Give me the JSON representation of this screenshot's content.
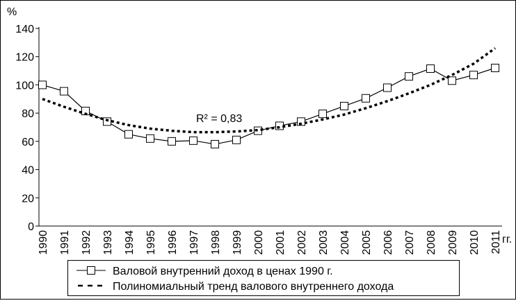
{
  "chart_data": {
    "type": "line",
    "ylabel": "%",
    "xlabel": "гг.",
    "annotation": "R² = 0,83",
    "categories": [
      "1990",
      "1991",
      "1992",
      "1993",
      "1994",
      "1995",
      "1996",
      "1997",
      "1998",
      "1999",
      "2000",
      "2001",
      "2002",
      "2003",
      "2004",
      "2005",
      "2006",
      "2007",
      "2008",
      "2009",
      "2010",
      "2011"
    ],
    "series": [
      {
        "name": "Валовой внутренний доход в ценах 1990 г.",
        "color": "#000000",
        "style": "solid",
        "marker": "square",
        "values": [
          100,
          95.5,
          81.5,
          74,
          65,
          62,
          60,
          60.5,
          58,
          61,
          67.5,
          71,
          74,
          79.5,
          85,
          90.5,
          98,
          106,
          111.5,
          103,
          107,
          112
        ]
      },
      {
        "name": "Полиномиальный тренд валового внутреннего дохода",
        "color": "#000000",
        "style": "dashed",
        "values": [
          90,
          84.5,
          79.5,
          75,
          71.5,
          69,
          67.5,
          66.5,
          66.5,
          67,
          68,
          70,
          72.5,
          75.5,
          79,
          83.5,
          88.5,
          94,
          100,
          107,
          115,
          126
        ]
      }
    ],
    "ylim": [
      0,
      140
    ],
    "yticks": [
      0,
      20,
      40,
      60,
      80,
      100,
      120,
      140
    ]
  }
}
